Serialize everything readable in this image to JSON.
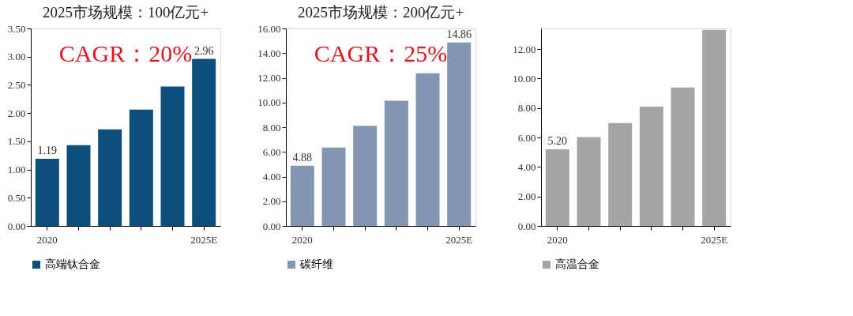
{
  "chart_data": [
    {
      "type": "bar",
      "title": "2025市场规模：100亿元+",
      "categories": [
        "2020",
        null,
        null,
        null,
        null,
        "2025E"
      ],
      "series": [
        {
          "name": "高端钛合金",
          "color": "#0d4f7c",
          "values": [
            1.19,
            1.43,
            1.71,
            2.06,
            2.47,
            2.96
          ],
          "value_labels": [
            "1.19",
            null,
            null,
            null,
            null,
            "2.96"
          ]
        }
      ],
      "ylim": [
        0,
        3.5
      ],
      "yticks": [
        {
          "value": 0,
          "label": "0.00"
        },
        {
          "value": 0.5,
          "label": "0.50"
        },
        {
          "value": 1,
          "label": "1.00"
        },
        {
          "value": 1.5,
          "label": "1.50"
        },
        {
          "value": 2,
          "label": "2.00"
        },
        {
          "value": 2.5,
          "label": "2.50"
        },
        {
          "value": 3,
          "label": "3.00"
        },
        {
          "value": 3.5,
          "label": "3.50"
        }
      ],
      "annotations": [
        "CAGR：20%"
      ],
      "legend": "bottom",
      "grid": false
    },
    {
      "type": "bar",
      "title": "2025市场规模：200亿元+",
      "categories": [
        "2020",
        null,
        null,
        null,
        null,
        "2025E"
      ],
      "series": [
        {
          "name": "碳纤维",
          "color": "#8397b2",
          "values": [
            4.88,
            6.36,
            8.11,
            10.15,
            12.37,
            14.86
          ],
          "value_labels": [
            "4.88",
            null,
            null,
            null,
            null,
            "14.86"
          ]
        }
      ],
      "ylim": [
        0,
        16
      ],
      "yticks": [
        {
          "value": 0,
          "label": "0.00"
        },
        {
          "value": 2,
          "label": "2.00"
        },
        {
          "value": 4,
          "label": "4.00"
        },
        {
          "value": 6,
          "label": "6.00"
        },
        {
          "value": 8,
          "label": "8.00"
        },
        {
          "value": 10,
          "label": "10.00"
        },
        {
          "value": 12,
          "label": "12.00"
        },
        {
          "value": 14,
          "label": "14.00"
        },
        {
          "value": 16,
          "label": "16.00"
        }
      ],
      "annotations": [
        "CAGR：25%"
      ],
      "legend": "bottom",
      "grid": false
    },
    {
      "type": "bar",
      "categories": [
        "2020",
        null,
        null,
        null,
        null,
        "2025E"
      ],
      "series": [
        {
          "name": "高温合金",
          "color": "#a5a5a5",
          "values": [
            5.2,
            6.03,
            6.98,
            8.09,
            9.39,
            13.3
          ],
          "value_labels": [
            "5.20",
            null,
            null,
            null,
            null,
            null
          ]
        }
      ],
      "ylim": [
        0,
        13.4
      ],
      "yticks": [
        {
          "value": 0,
          "label": "0.00"
        },
        {
          "value": 2,
          "label": "2.00"
        },
        {
          "value": 4,
          "label": "4.00"
        },
        {
          "value": 6,
          "label": "6.00"
        },
        {
          "value": 8,
          "label": "8.00"
        },
        {
          "value": 10,
          "label": "10.00"
        },
        {
          "value": 12,
          "label": "12.00"
        }
      ],
      "legend": "bottom",
      "grid": false
    }
  ]
}
